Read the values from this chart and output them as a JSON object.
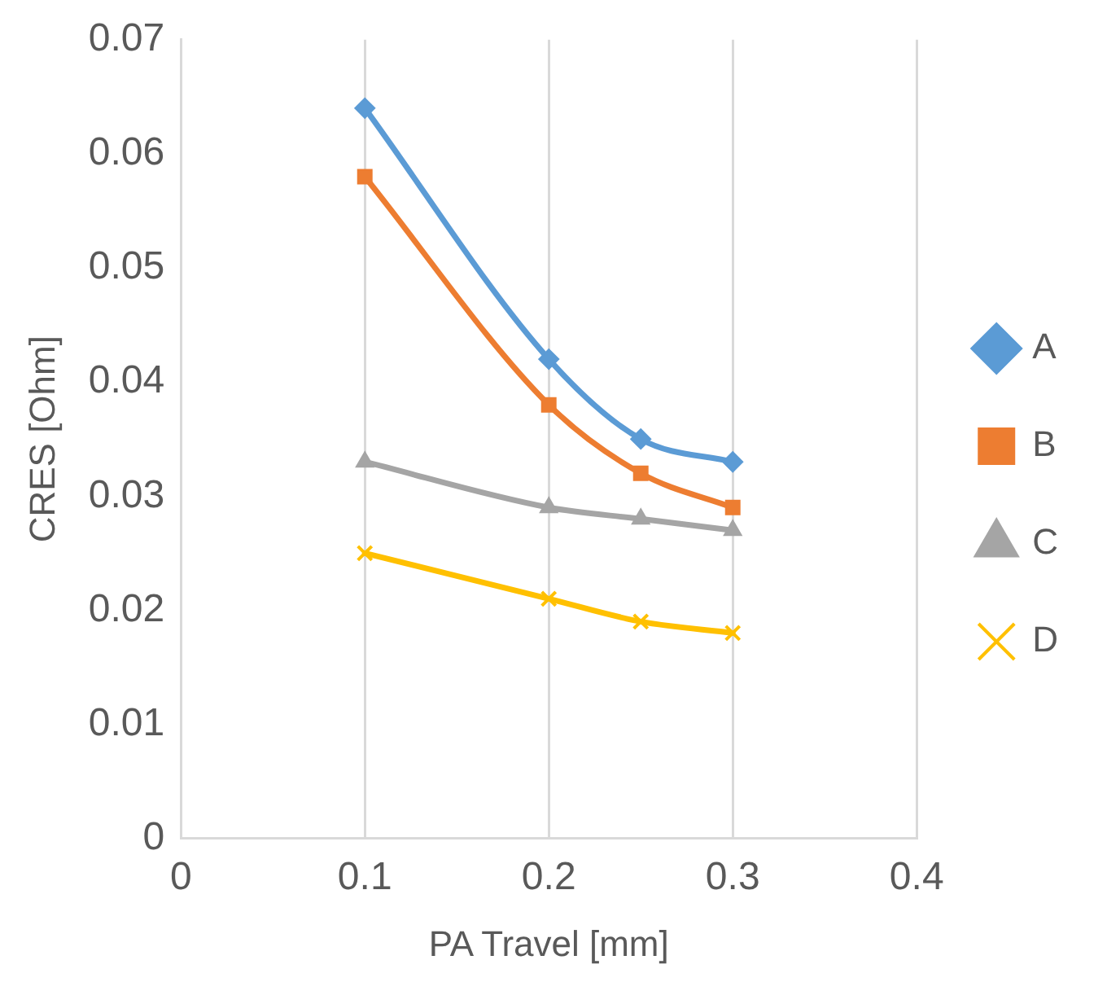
{
  "chart_data": {
    "type": "line",
    "xlabel": "PA Travel [mm]",
    "ylabel": "CRES [Ohm]",
    "x": [
      0.1,
      0.2,
      0.25,
      0.3
    ],
    "series": [
      {
        "name": "A",
        "color": "#5b9bd5",
        "marker": "diamond",
        "values": [
          0.064,
          0.042,
          0.035,
          0.033
        ]
      },
      {
        "name": "B",
        "color": "#ed7d31",
        "marker": "square",
        "values": [
          0.058,
          0.038,
          0.032,
          0.029
        ]
      },
      {
        "name": "C",
        "color": "#a5a5a5",
        "marker": "triangle",
        "values": [
          0.033,
          0.029,
          0.028,
          0.027
        ]
      },
      {
        "name": "D",
        "color": "#ffc000",
        "marker": "cross",
        "values": [
          0.025,
          0.021,
          0.019,
          0.018
        ]
      }
    ],
    "xlim": [
      0,
      0.4
    ],
    "xticks": [
      0,
      0.1,
      0.2,
      0.3,
      0.4
    ],
    "ylim": [
      0,
      0.07
    ],
    "yticks": [
      0,
      0.01,
      0.02,
      0.03,
      0.04,
      0.05,
      0.06,
      0.07
    ],
    "grid": "x",
    "legend": "right",
    "line_style": "solid"
  }
}
